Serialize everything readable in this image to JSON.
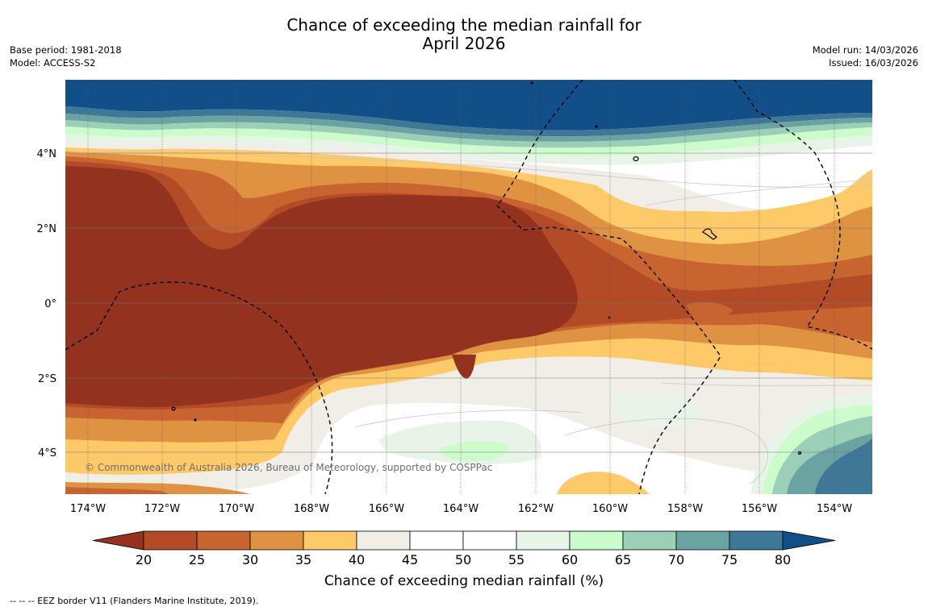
{
  "title": {
    "line1": "Chance of exceeding the median rainfall for",
    "line2": "April 2026"
  },
  "meta_left": {
    "base_period": "Base period: 1981-2018",
    "model": "Model: ACCESS-S2"
  },
  "meta_right": {
    "model_run": "Model run: 14/03/2026",
    "issued": "Issued: 16/03/2026"
  },
  "map": {
    "lat_labels": [
      "4°N",
      "2°N",
      "0°",
      "2°S",
      "4°S"
    ],
    "lon_labels": [
      "174°W",
      "172°W",
      "170°W",
      "168°W",
      "166°W",
      "164°W",
      "162°W",
      "160°W",
      "158°W",
      "156°W",
      "154°W"
    ],
    "copyright": "© Commonwealth of Australia 2026, Bureau of Meteorology, supported by COSPPac"
  },
  "colorbar": {
    "label": "Chance of exceeding median rainfall (%)",
    "ticks": [
      "20",
      "25",
      "30",
      "35",
      "40",
      "45",
      "50",
      "55",
      "60",
      "65",
      "70",
      "75",
      "80"
    ],
    "colors": [
      "#943220",
      "#b24b26",
      "#c8642f",
      "#e09243",
      "#fdc969",
      "#f1ede7",
      "#ffffff",
      "#ffffff",
      "#e8f4e8",
      "#ccfccc",
      "#9ccfb8",
      "#6ba2a2",
      "#3f7797",
      "#124f88"
    ]
  },
  "footer": {
    "text": "--  --  -- EEZ border V11 (Flanders Marine Institute, 2019)."
  }
}
